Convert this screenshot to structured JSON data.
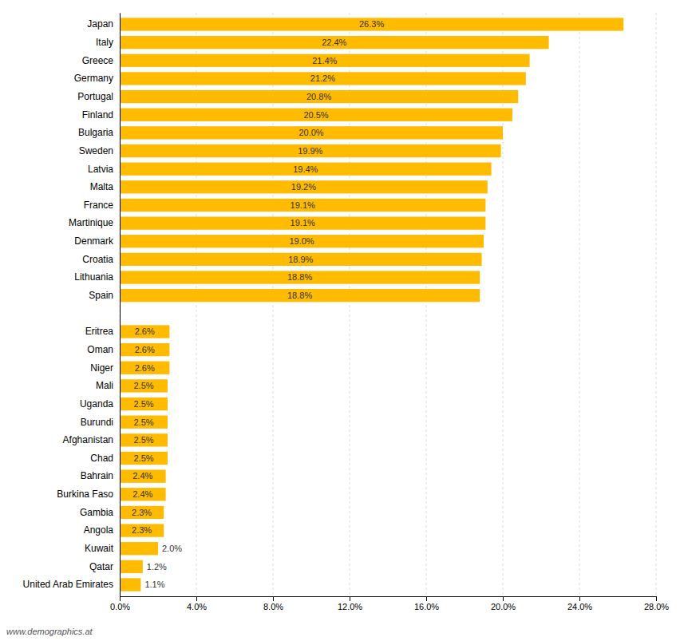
{
  "chart_data": {
    "type": "bar",
    "orientation": "horizontal",
    "categories": [
      "Japan",
      "Italy",
      "Greece",
      "Germany",
      "Portugal",
      "Finland",
      "Bulgaria",
      "Sweden",
      "Latvia",
      "Malta",
      "France",
      "Martinique",
      "Denmark",
      "Croatia",
      "Lithuania",
      "Spain",
      "Eritrea",
      "Oman",
      "Niger",
      "Mali",
      "Uganda",
      "Burundi",
      "Afghanistan",
      "Chad",
      "Bahrain",
      "Burkina Faso",
      "Gambia",
      "Angola",
      "Kuwait",
      "Qatar",
      "United Arab Emirates"
    ],
    "values": [
      26.3,
      22.4,
      21.4,
      21.2,
      20.8,
      20.5,
      20.0,
      19.9,
      19.4,
      19.2,
      19.1,
      19.1,
      19.0,
      18.9,
      18.8,
      18.8,
      2.6,
      2.6,
      2.6,
      2.5,
      2.5,
      2.5,
      2.5,
      2.5,
      2.4,
      2.4,
      2.3,
      2.3,
      2.0,
      1.2,
      1.1
    ],
    "value_labels": [
      "26.3%",
      "22.4%",
      "21.4%",
      "21.2%",
      "20.8%",
      "20.5%",
      "20.0%",
      "19.9%",
      "19.4%",
      "19.2%",
      "19.1%",
      "19.1%",
      "19.0%",
      "18.9%",
      "18.8%",
      "18.8%",
      "2.6%",
      "2.6%",
      "2.6%",
      "2.5%",
      "2.5%",
      "2.5%",
      "2.5%",
      "2.5%",
      "2.4%",
      "2.4%",
      "2.3%",
      "2.3%",
      "2.0%",
      "1.2%",
      "1.1%"
    ],
    "data_labels": true,
    "color": "#FFBB00",
    "xlim": [
      0,
      28.0
    ],
    "xticks": [
      {
        "value": 0,
        "label": "0.0%"
      },
      {
        "value": 4,
        "label": "4.0%"
      },
      {
        "value": 8,
        "label": "8.0%"
      },
      {
        "value": 12,
        "label": "12.0%"
      },
      {
        "value": 16,
        "label": "16.0%"
      },
      {
        "value": 20,
        "label": "20.0%"
      },
      {
        "value": 24,
        "label": "24.0%"
      },
      {
        "value": 28,
        "label": "28.0%"
      }
    ],
    "grid": true,
    "annotations": [
      "www.demographics.at"
    ]
  }
}
